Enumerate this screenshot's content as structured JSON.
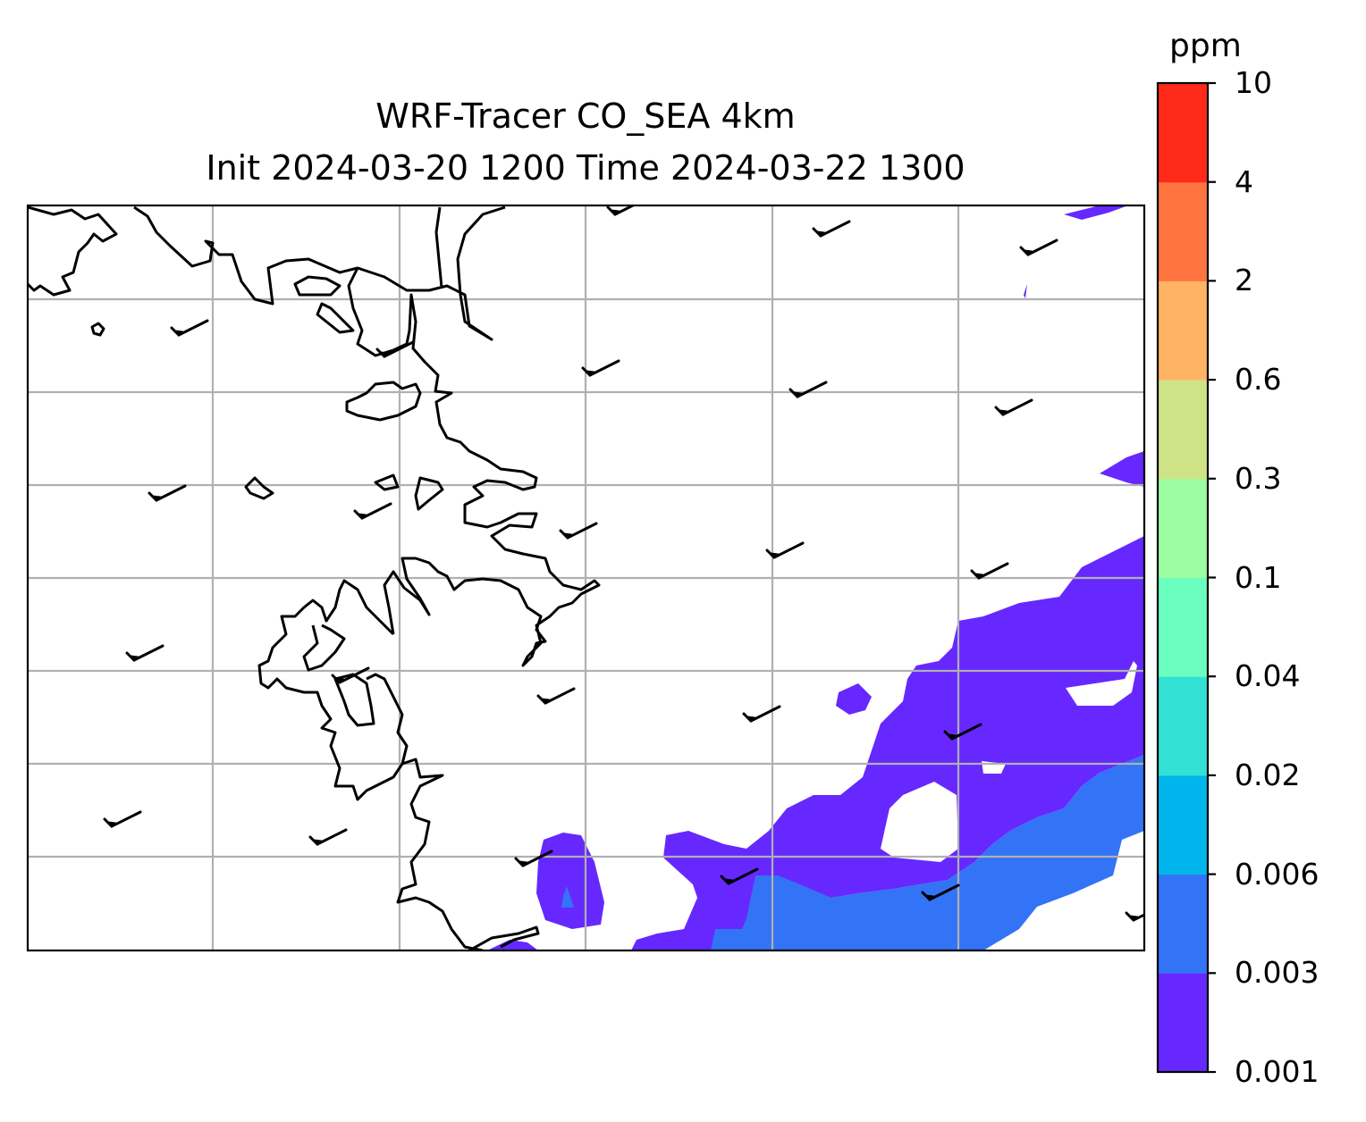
{
  "title": {
    "line1": "WRF-Tracer CO_SEA 4km",
    "line2": "Init 2024-03-20 1200 Time 2024-03-22 1300"
  },
  "colorbar": {
    "unit": "ppm",
    "levels": [
      "0.001",
      "0.003",
      "0.006",
      "0.02",
      "0.04",
      "0.1",
      "0.3",
      "0.6",
      "2",
      "4",
      "10"
    ],
    "colors": [
      "#6628ff",
      "#3373f6",
      "#00b5ec",
      "#32e0d4",
      "#6afebf",
      "#9cfea0",
      "#cee385",
      "#ffb364",
      "#ff743f",
      "#ff2a1a"
    ]
  },
  "map": {
    "coastline_color": "#000000",
    "gridline_color": "#b0b0b0",
    "wind_barb_color": "#000000",
    "wind_barb_count": 24
  }
}
